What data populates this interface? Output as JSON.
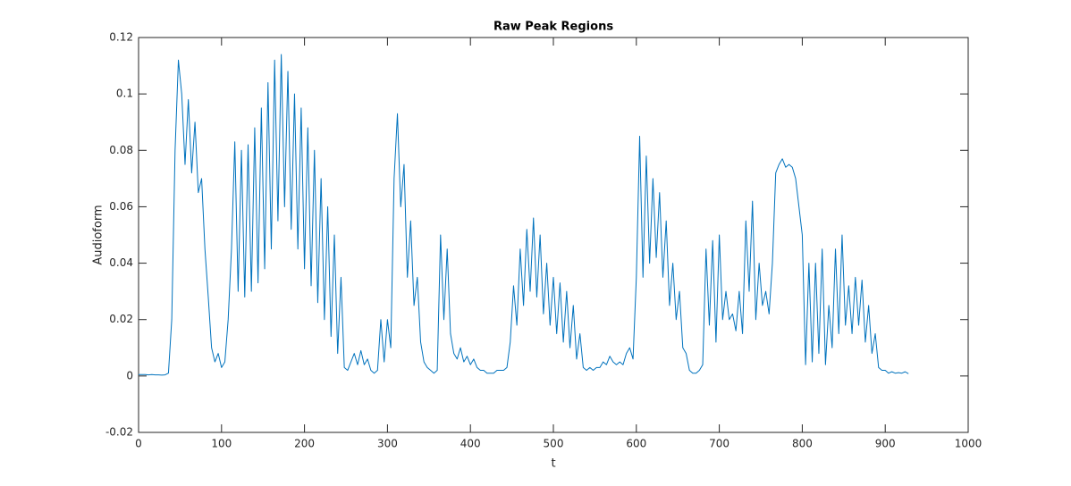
{
  "chart_data": {
    "type": "line",
    "title": "Raw Peak Regions",
    "x_label": "t",
    "y_label": "Audioform",
    "xlim": [
      0,
      1000
    ],
    "xticks": [
      0,
      100,
      200,
      300,
      400,
      500,
      600,
      700,
      800,
      900,
      1000
    ],
    "ylim": [
      -0.02,
      0.12
    ],
    "yticks": [
      -0.02,
      0,
      0.02,
      0.04,
      0.06,
      0.08,
      0.1,
      0.12
    ],
    "color": "#0072bd",
    "x": [
      0,
      4,
      8,
      12,
      16,
      20,
      24,
      28,
      32,
      36,
      40,
      44,
      48,
      52,
      56,
      60,
      64,
      68,
      72,
      76,
      80,
      84,
      88,
      92,
      96,
      100,
      104,
      108,
      112,
      116,
      120,
      124,
      128,
      132,
      136,
      140,
      144,
      148,
      152,
      156,
      160,
      164,
      168,
      172,
      176,
      180,
      184,
      188,
      192,
      196,
      200,
      204,
      208,
      212,
      216,
      220,
      224,
      228,
      232,
      236,
      240,
      244,
      248,
      252,
      256,
      260,
      264,
      268,
      272,
      276,
      280,
      284,
      288,
      292,
      296,
      300,
      304,
      308,
      312,
      316,
      320,
      324,
      328,
      332,
      336,
      340,
      344,
      348,
      352,
      356,
      360,
      364,
      368,
      372,
      376,
      380,
      384,
      388,
      392,
      396,
      400,
      404,
      408,
      412,
      416,
      420,
      424,
      428,
      432,
      436,
      440,
      444,
      448,
      452,
      456,
      460,
      464,
      468,
      472,
      476,
      480,
      484,
      488,
      492,
      496,
      500,
      504,
      508,
      512,
      516,
      520,
      524,
      528,
      532,
      536,
      540,
      544,
      548,
      552,
      556,
      560,
      564,
      568,
      572,
      576,
      580,
      584,
      588,
      592,
      596,
      600,
      604,
      608,
      612,
      616,
      620,
      624,
      628,
      632,
      636,
      640,
      644,
      648,
      652,
      656,
      660,
      664,
      668,
      672,
      676,
      680,
      684,
      688,
      692,
      696,
      700,
      704,
      708,
      712,
      716,
      720,
      724,
      728,
      732,
      736,
      740,
      744,
      748,
      752,
      756,
      760,
      764,
      768,
      772,
      776,
      780,
      784,
      788,
      792,
      796,
      800,
      804,
      808,
      812,
      816,
      820,
      824,
      828,
      832,
      836,
      840,
      844,
      848,
      852,
      856,
      860,
      864,
      868,
      872,
      876,
      880,
      884,
      888,
      892,
      896,
      900,
      904,
      908,
      912,
      916,
      920,
      924,
      928
    ],
    "values": [
      0.0005,
      0.0005,
      0.0005,
      0.0004,
      0.0005,
      0.0004,
      0.0004,
      0.0003,
      0.0004,
      0.001,
      0.02,
      0.08,
      0.112,
      0.1,
      0.075,
      0.098,
      0.072,
      0.09,
      0.065,
      0.07,
      0.045,
      0.028,
      0.01,
      0.005,
      0.008,
      0.003,
      0.005,
      0.02,
      0.045,
      0.083,
      0.03,
      0.08,
      0.028,
      0.082,
      0.03,
      0.088,
      0.033,
      0.095,
      0.038,
      0.104,
      0.045,
      0.112,
      0.055,
      0.114,
      0.06,
      0.108,
      0.052,
      0.1,
      0.045,
      0.095,
      0.038,
      0.088,
      0.032,
      0.08,
      0.026,
      0.07,
      0.02,
      0.06,
      0.014,
      0.05,
      0.008,
      0.035,
      0.003,
      0.002,
      0.005,
      0.008,
      0.004,
      0.009,
      0.004,
      0.006,
      0.002,
      0.001,
      0.002,
      0.02,
      0.005,
      0.02,
      0.01,
      0.07,
      0.093,
      0.06,
      0.075,
      0.035,
      0.055,
      0.025,
      0.035,
      0.012,
      0.005,
      0.003,
      0.002,
      0.001,
      0.002,
      0.05,
      0.02,
      0.045,
      0.015,
      0.008,
      0.006,
      0.01,
      0.005,
      0.007,
      0.004,
      0.006,
      0.003,
      0.002,
      0.002,
      0.001,
      0.001,
      0.001,
      0.002,
      0.002,
      0.002,
      0.003,
      0.012,
      0.032,
      0.018,
      0.045,
      0.025,
      0.052,
      0.03,
      0.056,
      0.028,
      0.05,
      0.022,
      0.04,
      0.018,
      0.035,
      0.015,
      0.033,
      0.012,
      0.03,
      0.01,
      0.025,
      0.006,
      0.015,
      0.003,
      0.002,
      0.003,
      0.002,
      0.003,
      0.003,
      0.005,
      0.004,
      0.007,
      0.005,
      0.004,
      0.005,
      0.004,
      0.008,
      0.01,
      0.006,
      0.035,
      0.085,
      0.035,
      0.078,
      0.04,
      0.07,
      0.042,
      0.065,
      0.035,
      0.055,
      0.025,
      0.04,
      0.02,
      0.03,
      0.01,
      0.008,
      0.002,
      0.001,
      0.001,
      0.002,
      0.004,
      0.045,
      0.018,
      0.048,
      0.012,
      0.05,
      0.02,
      0.03,
      0.02,
      0.022,
      0.016,
      0.03,
      0.015,
      0.055,
      0.03,
      0.062,
      0.02,
      0.04,
      0.025,
      0.03,
      0.022,
      0.04,
      0.072,
      0.075,
      0.077,
      0.074,
      0.075,
      0.074,
      0.07,
      0.06,
      0.05,
      0.004,
      0.04,
      0.005,
      0.04,
      0.008,
      0.045,
      0.004,
      0.025,
      0.01,
      0.045,
      0.015,
      0.05,
      0.018,
      0.032,
      0.015,
      0.035,
      0.018,
      0.034,
      0.012,
      0.025,
      0.008,
      0.015,
      0.003,
      0.002,
      0.002,
      0.001,
      0.0015,
      0.001,
      0.0012,
      0.001,
      0.0015,
      0.0008
    ]
  }
}
